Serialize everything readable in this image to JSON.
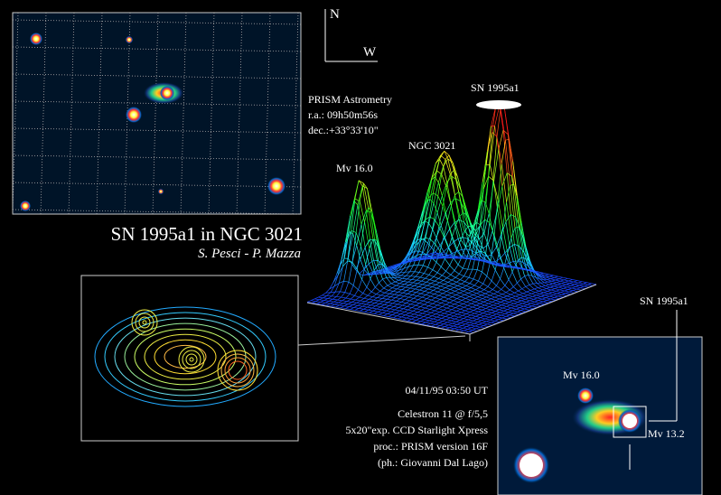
{
  "compass": {
    "north": "N",
    "west": "W"
  },
  "astrometry": {
    "title": "PRISM Astrometry",
    "ra": "r.a.: 09h50m56s",
    "dec": "dec.:+33°33'10\""
  },
  "peaks": {
    "sn": "SN 1995a1",
    "galaxy": "NGC 3021",
    "star": "Mv 16.0"
  },
  "caption": {
    "title": "SN 1995a1 in NGC 3021",
    "authors": "S. Pesci - P. Mazza"
  },
  "details": {
    "date": "04/11/95 03:50 UT",
    "telescope": "Celestron 11 @ f/5,5",
    "exposure": "5x20\"exp. CCD Starlight Xpress",
    "processing": "proc.: PRISM version 16F",
    "photo": "(ph.: Giovanni Dal Lago)"
  },
  "inset": {
    "sn": "SN 1995a1",
    "star_faint": "Mv 16.0",
    "star_bright": "Mv 13.2"
  }
}
